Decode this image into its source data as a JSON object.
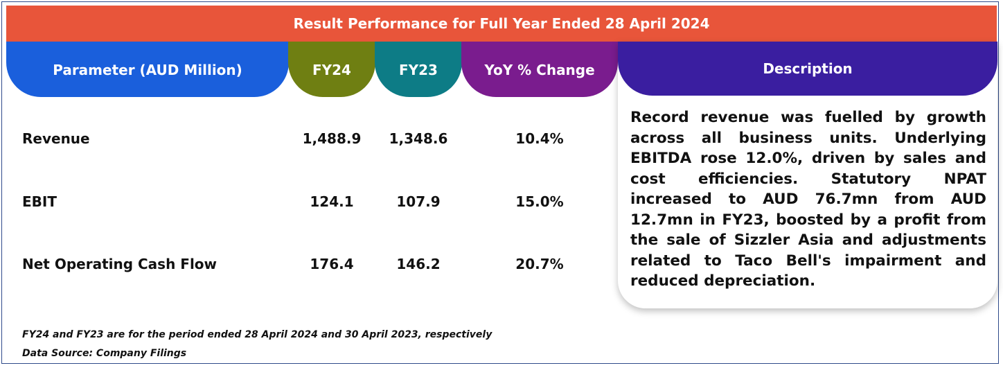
{
  "title": "Result Performance for Full Year Ended 28 April 2024",
  "headers": {
    "parameter": "Parameter (AUD Million)",
    "fy24": "FY24",
    "fy23": "FY23",
    "yoy": "YoY % Change",
    "description": "Description"
  },
  "rows": [
    {
      "parameter": "Revenue",
      "fy24": "1,488.9",
      "fy23": "1,348.6",
      "yoy": "10.4%"
    },
    {
      "parameter": "EBIT",
      "fy24": "124.1",
      "fy23": "107.9",
      "yoy": "15.0%"
    },
    {
      "parameter": "Net Operating Cash Flow",
      "fy24": "176.4",
      "fy23": "146.2",
      "yoy": "20.7%"
    }
  ],
  "description": "Record revenue was fuelled by growth across all business units. Underlying EBITDA rose 12.0%, driven by sales and cost efficiencies. Statutory NPAT increased to AUD 76.7mn from AUD 12.7mn in FY23, boosted by a profit from the sale of Sizzler Asia and adjustments related to Taco Bell's impairment and reduced depreciation.",
  "notes": {
    "period": "FY24 and FY23 are for the period ended 28 April 2024 and 30 April 2023, respectively",
    "source": "Data Source: Company Filings"
  },
  "colors": {
    "title_bar": "#e8553a",
    "parameter_header": "#1a5fdc",
    "fy24_header": "#6f7f12",
    "fy23_header": "#0d7c86",
    "yoy_header": "#7a1c8e",
    "description_header": "#3a1ea0"
  }
}
